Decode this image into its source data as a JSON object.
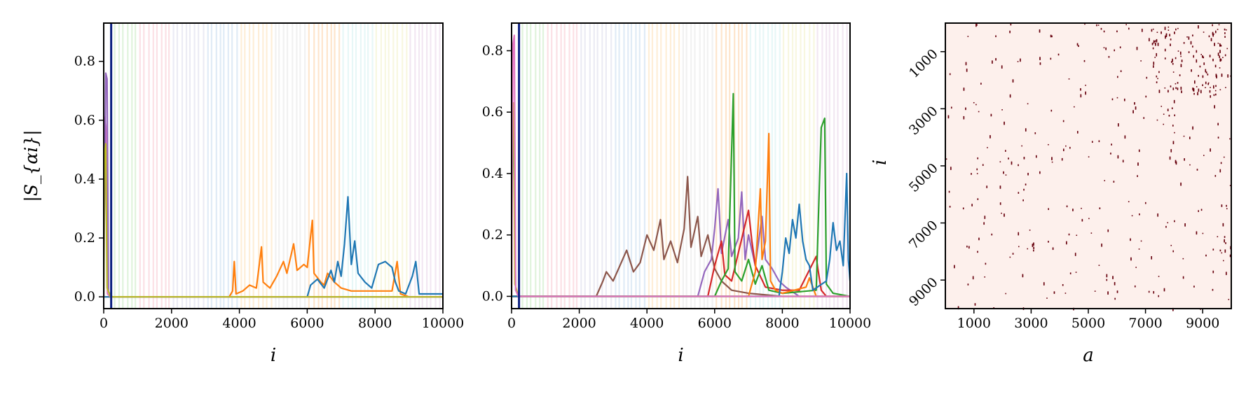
{
  "chart_data": [
    {
      "type": "line",
      "panel": "left",
      "xlabel": "i",
      "ylabel": "|S_{αi}|",
      "xlim": [
        0,
        10000
      ],
      "ylim": [
        -0.04,
        0.93
      ],
      "x_ticks": [
        0,
        2000,
        4000,
        6000,
        8000,
        10000
      ],
      "x_tick_labels": [
        "0",
        "2000",
        "4000",
        "6000",
        "8000",
        "10000"
      ],
      "y_ticks": [
        0.0,
        0.2,
        0.4,
        0.6,
        0.8
      ],
      "y_tick_labels": [
        "0.0",
        "0.2",
        "0.4",
        "0.6",
        "0.8"
      ],
      "vertical_marker_x": 220,
      "vertical_marker_color": "#0b1e80",
      "background_bands": true,
      "series": [
        {
          "color": "#ff7f0e",
          "values": [
            [
              0,
              0.0
            ],
            [
              3700,
              0.0
            ],
            [
              3800,
              0.02
            ],
            [
              3850,
              0.12
            ],
            [
              3900,
              0.01
            ],
            [
              4100,
              0.02
            ],
            [
              4300,
              0.04
            ],
            [
              4500,
              0.03
            ],
            [
              4600,
              0.12
            ],
            [
              4650,
              0.17
            ],
            [
              4700,
              0.05
            ],
            [
              4900,
              0.03
            ],
            [
              5100,
              0.07
            ],
            [
              5300,
              0.12
            ],
            [
              5400,
              0.08
            ],
            [
              5600,
              0.18
            ],
            [
              5700,
              0.09
            ],
            [
              5900,
              0.11
            ],
            [
              6000,
              0.1
            ],
            [
              6150,
              0.26
            ],
            [
              6200,
              0.08
            ],
            [
              6400,
              0.05
            ],
            [
              6500,
              0.04
            ],
            [
              6600,
              0.08
            ],
            [
              6800,
              0.05
            ],
            [
              7000,
              0.03
            ],
            [
              7300,
              0.02
            ],
            [
              7600,
              0.02
            ],
            [
              8000,
              0.02
            ],
            [
              8500,
              0.02
            ],
            [
              8650,
              0.12
            ],
            [
              8750,
              0.01
            ],
            [
              9000,
              0.0
            ],
            [
              10000,
              0.0
            ]
          ]
        },
        {
          "color": "#1f77b4",
          "values": [
            [
              0,
              0.0
            ],
            [
              6000,
              0.0
            ],
            [
              6100,
              0.04
            ],
            [
              6300,
              0.06
            ],
            [
              6500,
              0.03
            ],
            [
              6700,
              0.09
            ],
            [
              6800,
              0.05
            ],
            [
              6900,
              0.12
            ],
            [
              7000,
              0.07
            ],
            [
              7100,
              0.18
            ],
            [
              7200,
              0.34
            ],
            [
              7300,
              0.11
            ],
            [
              7400,
              0.19
            ],
            [
              7500,
              0.08
            ],
            [
              7700,
              0.05
            ],
            [
              7900,
              0.03
            ],
            [
              8100,
              0.11
            ],
            [
              8300,
              0.12
            ],
            [
              8500,
              0.1
            ],
            [
              8600,
              0.05
            ],
            [
              8700,
              0.02
            ],
            [
              8900,
              0.01
            ],
            [
              9100,
              0.07
            ],
            [
              9200,
              0.12
            ],
            [
              9300,
              0.01
            ],
            [
              9600,
              0.01
            ],
            [
              10000,
              0.01
            ]
          ]
        },
        {
          "color": "#17becf",
          "values": [
            [
              0,
              0.54
            ],
            [
              40,
              0.58
            ],
            [
              80,
              0.31
            ],
            [
              120,
              0.02
            ],
            [
              250,
              0.0
            ],
            [
              10000,
              0.0
            ]
          ]
        },
        {
          "color": "#e377c2",
          "values": [
            [
              0,
              0.0
            ],
            [
              30,
              0.61
            ],
            [
              70,
              0.57
            ],
            [
              110,
              0.01
            ],
            [
              200,
              0.0
            ],
            [
              10000,
              0.0
            ]
          ]
        },
        {
          "color": "#9467bd",
          "values": [
            [
              0,
              0.0
            ],
            [
              60,
              0.76
            ],
            [
              100,
              0.74
            ],
            [
              140,
              0.02
            ],
            [
              200,
              0.0
            ],
            [
              10000,
              0.0
            ]
          ]
        },
        {
          "color": "#bcbd22",
          "values": [
            [
              0,
              0.0
            ],
            [
              20,
              0.47
            ],
            [
              60,
              0.52
            ],
            [
              100,
              0.03
            ],
            [
              200,
              0.0
            ],
            [
              10000,
              0.0
            ]
          ]
        }
      ]
    },
    {
      "type": "line",
      "panel": "middle",
      "xlabel": "i",
      "xlim": [
        0,
        10000
      ],
      "ylim": [
        -0.04,
        0.89
      ],
      "x_ticks": [
        0,
        2000,
        4000,
        6000,
        8000,
        10000
      ],
      "x_tick_labels": [
        "0",
        "2000",
        "4000",
        "6000",
        "8000",
        "10000"
      ],
      "y_ticks": [
        0.0,
        0.2,
        0.4,
        0.6,
        0.8
      ],
      "y_tick_labels": [
        "0.0",
        "0.2",
        "0.4",
        "0.6",
        "0.8"
      ],
      "vertical_marker_x": 220,
      "vertical_marker_color": "#0b1e80",
      "background_bands": true,
      "series": [
        {
          "color": "#8c564b",
          "values": [
            [
              0,
              0.0
            ],
            [
              2500,
              0.0
            ],
            [
              2700,
              0.05
            ],
            [
              2800,
              0.08
            ],
            [
              3000,
              0.05
            ],
            [
              3200,
              0.1
            ],
            [
              3400,
              0.15
            ],
            [
              3600,
              0.08
            ],
            [
              3800,
              0.11
            ],
            [
              4000,
              0.2
            ],
            [
              4200,
              0.15
            ],
            [
              4400,
              0.25
            ],
            [
              4500,
              0.12
            ],
            [
              4700,
              0.18
            ],
            [
              4900,
              0.11
            ],
            [
              5100,
              0.22
            ],
            [
              5200,
              0.39
            ],
            [
              5300,
              0.16
            ],
            [
              5500,
              0.26
            ],
            [
              5600,
              0.13
            ],
            [
              5800,
              0.2
            ],
            [
              6000,
              0.09
            ],
            [
              6200,
              0.05
            ],
            [
              6500,
              0.02
            ],
            [
              7000,
              0.01
            ],
            [
              8000,
              0.0
            ],
            [
              10000,
              0.0
            ]
          ]
        },
        {
          "color": "#9467bd",
          "values": [
            [
              0,
              0.0
            ],
            [
              5500,
              0.0
            ],
            [
              5700,
              0.08
            ],
            [
              5900,
              0.12
            ],
            [
              6000,
              0.22
            ],
            [
              6100,
              0.35
            ],
            [
              6200,
              0.14
            ],
            [
              6400,
              0.25
            ],
            [
              6500,
              0.13
            ],
            [
              6700,
              0.19
            ],
            [
              6800,
              0.34
            ],
            [
              6900,
              0.12
            ],
            [
              7000,
              0.2
            ],
            [
              7200,
              0.1
            ],
            [
              7400,
              0.26
            ],
            [
              7500,
              0.12
            ],
            [
              7700,
              0.09
            ],
            [
              7900,
              0.05
            ],
            [
              8100,
              0.03
            ],
            [
              8500,
              0.0
            ],
            [
              10000,
              0.0
            ]
          ]
        },
        {
          "color": "#d62728",
          "values": [
            [
              0,
              0.0
            ],
            [
              5800,
              0.0
            ],
            [
              6000,
              0.1
            ],
            [
              6200,
              0.18
            ],
            [
              6300,
              0.07
            ],
            [
              6500,
              0.05
            ],
            [
              7000,
              0.28
            ],
            [
              7100,
              0.18
            ],
            [
              7200,
              0.1
            ],
            [
              7500,
              0.03
            ],
            [
              8000,
              0.02
            ],
            [
              8500,
              0.02
            ],
            [
              9000,
              0.13
            ],
            [
              9050,
              0.09
            ],
            [
              9150,
              0.02
            ],
            [
              9300,
              0.0
            ],
            [
              10000,
              0.0
            ]
          ]
        },
        {
          "color": "#2ca02c",
          "values": [
            [
              0,
              0.0
            ],
            [
              6000,
              0.0
            ],
            [
              6200,
              0.05
            ],
            [
              6400,
              0.09
            ],
            [
              6550,
              0.66
            ],
            [
              6600,
              0.08
            ],
            [
              6800,
              0.05
            ],
            [
              7000,
              0.12
            ],
            [
              7200,
              0.04
            ],
            [
              7400,
              0.1
            ],
            [
              7600,
              0.02
            ],
            [
              8000,
              0.01
            ],
            [
              9000,
              0.02
            ],
            [
              9100,
              0.38
            ],
            [
              9150,
              0.55
            ],
            [
              9250,
              0.58
            ],
            [
              9300,
              0.04
            ],
            [
              9500,
              0.01
            ],
            [
              10000,
              0.0
            ]
          ]
        },
        {
          "color": "#ff7f0e",
          "values": [
            [
              0,
              0.0
            ],
            [
              7000,
              0.0
            ],
            [
              7200,
              0.08
            ],
            [
              7350,
              0.35
            ],
            [
              7400,
              0.12
            ],
            [
              7500,
              0.18
            ],
            [
              7600,
              0.53
            ],
            [
              7650,
              0.05
            ],
            [
              7800,
              0.02
            ],
            [
              8000,
              0.01
            ],
            [
              8700,
              0.03
            ],
            [
              8800,
              0.06
            ],
            [
              8900,
              0.03
            ],
            [
              9000,
              0.0
            ],
            [
              10000,
              0.0
            ]
          ]
        },
        {
          "color": "#1f77b4",
          "values": [
            [
              0,
              0.0
            ],
            [
              7900,
              0.0
            ],
            [
              8000,
              0.08
            ],
            [
              8100,
              0.19
            ],
            [
              8200,
              0.14
            ],
            [
              8300,
              0.25
            ],
            [
              8400,
              0.19
            ],
            [
              8500,
              0.3
            ],
            [
              8600,
              0.18
            ],
            [
              8700,
              0.12
            ],
            [
              8800,
              0.1
            ],
            [
              8900,
              0.02
            ],
            [
              9300,
              0.05
            ],
            [
              9400,
              0.12
            ],
            [
              9500,
              0.24
            ],
            [
              9600,
              0.15
            ],
            [
              9700,
              0.18
            ],
            [
              9800,
              0.1
            ],
            [
              9900,
              0.4
            ],
            [
              9950,
              0.12
            ],
            [
              10000,
              0.05
            ]
          ]
        },
        {
          "color": "#17becf",
          "values": [
            [
              0,
              0.54
            ],
            [
              40,
              0.57
            ],
            [
              80,
              0.34
            ],
            [
              120,
              0.02
            ],
            [
              250,
              0.0
            ],
            [
              10000,
              0.0
            ]
          ]
        },
        {
          "color": "#bcbd22",
          "values": [
            [
              0,
              0.0
            ],
            [
              20,
              0.6
            ],
            [
              60,
              0.63
            ],
            [
              100,
              0.04
            ],
            [
              200,
              0.0
            ],
            [
              10000,
              0.0
            ]
          ]
        },
        {
          "color": "#e377c2",
          "values": [
            [
              0,
              0.0
            ],
            [
              40,
              0.82
            ],
            [
              80,
              0.85
            ],
            [
              120,
              0.02
            ],
            [
              200,
              0.0
            ],
            [
              10000,
              0.0
            ]
          ]
        }
      ]
    },
    {
      "type": "heatmap",
      "panel": "right",
      "xlabel": "a",
      "ylabel": "i",
      "xlim": [
        0,
        10000
      ],
      "ylim": [
        10000,
        0
      ],
      "x_ticks": [
        1000,
        3000,
        5000,
        7000,
        9000
      ],
      "x_tick_labels": [
        "1000",
        "3000",
        "5000",
        "7000",
        "9000"
      ],
      "y_ticks": [
        1000,
        3000,
        5000,
        7000,
        9000
      ],
      "y_tick_labels": [
        "1000",
        "3000",
        "5000",
        "7000",
        "9000"
      ],
      "background_color": "#fdf0ec",
      "dot_color": "#67000d",
      "sparse_points": 420,
      "structure": "sparse dots scattered across the full i-by-a matrix, denser in the upper-right"
    }
  ]
}
